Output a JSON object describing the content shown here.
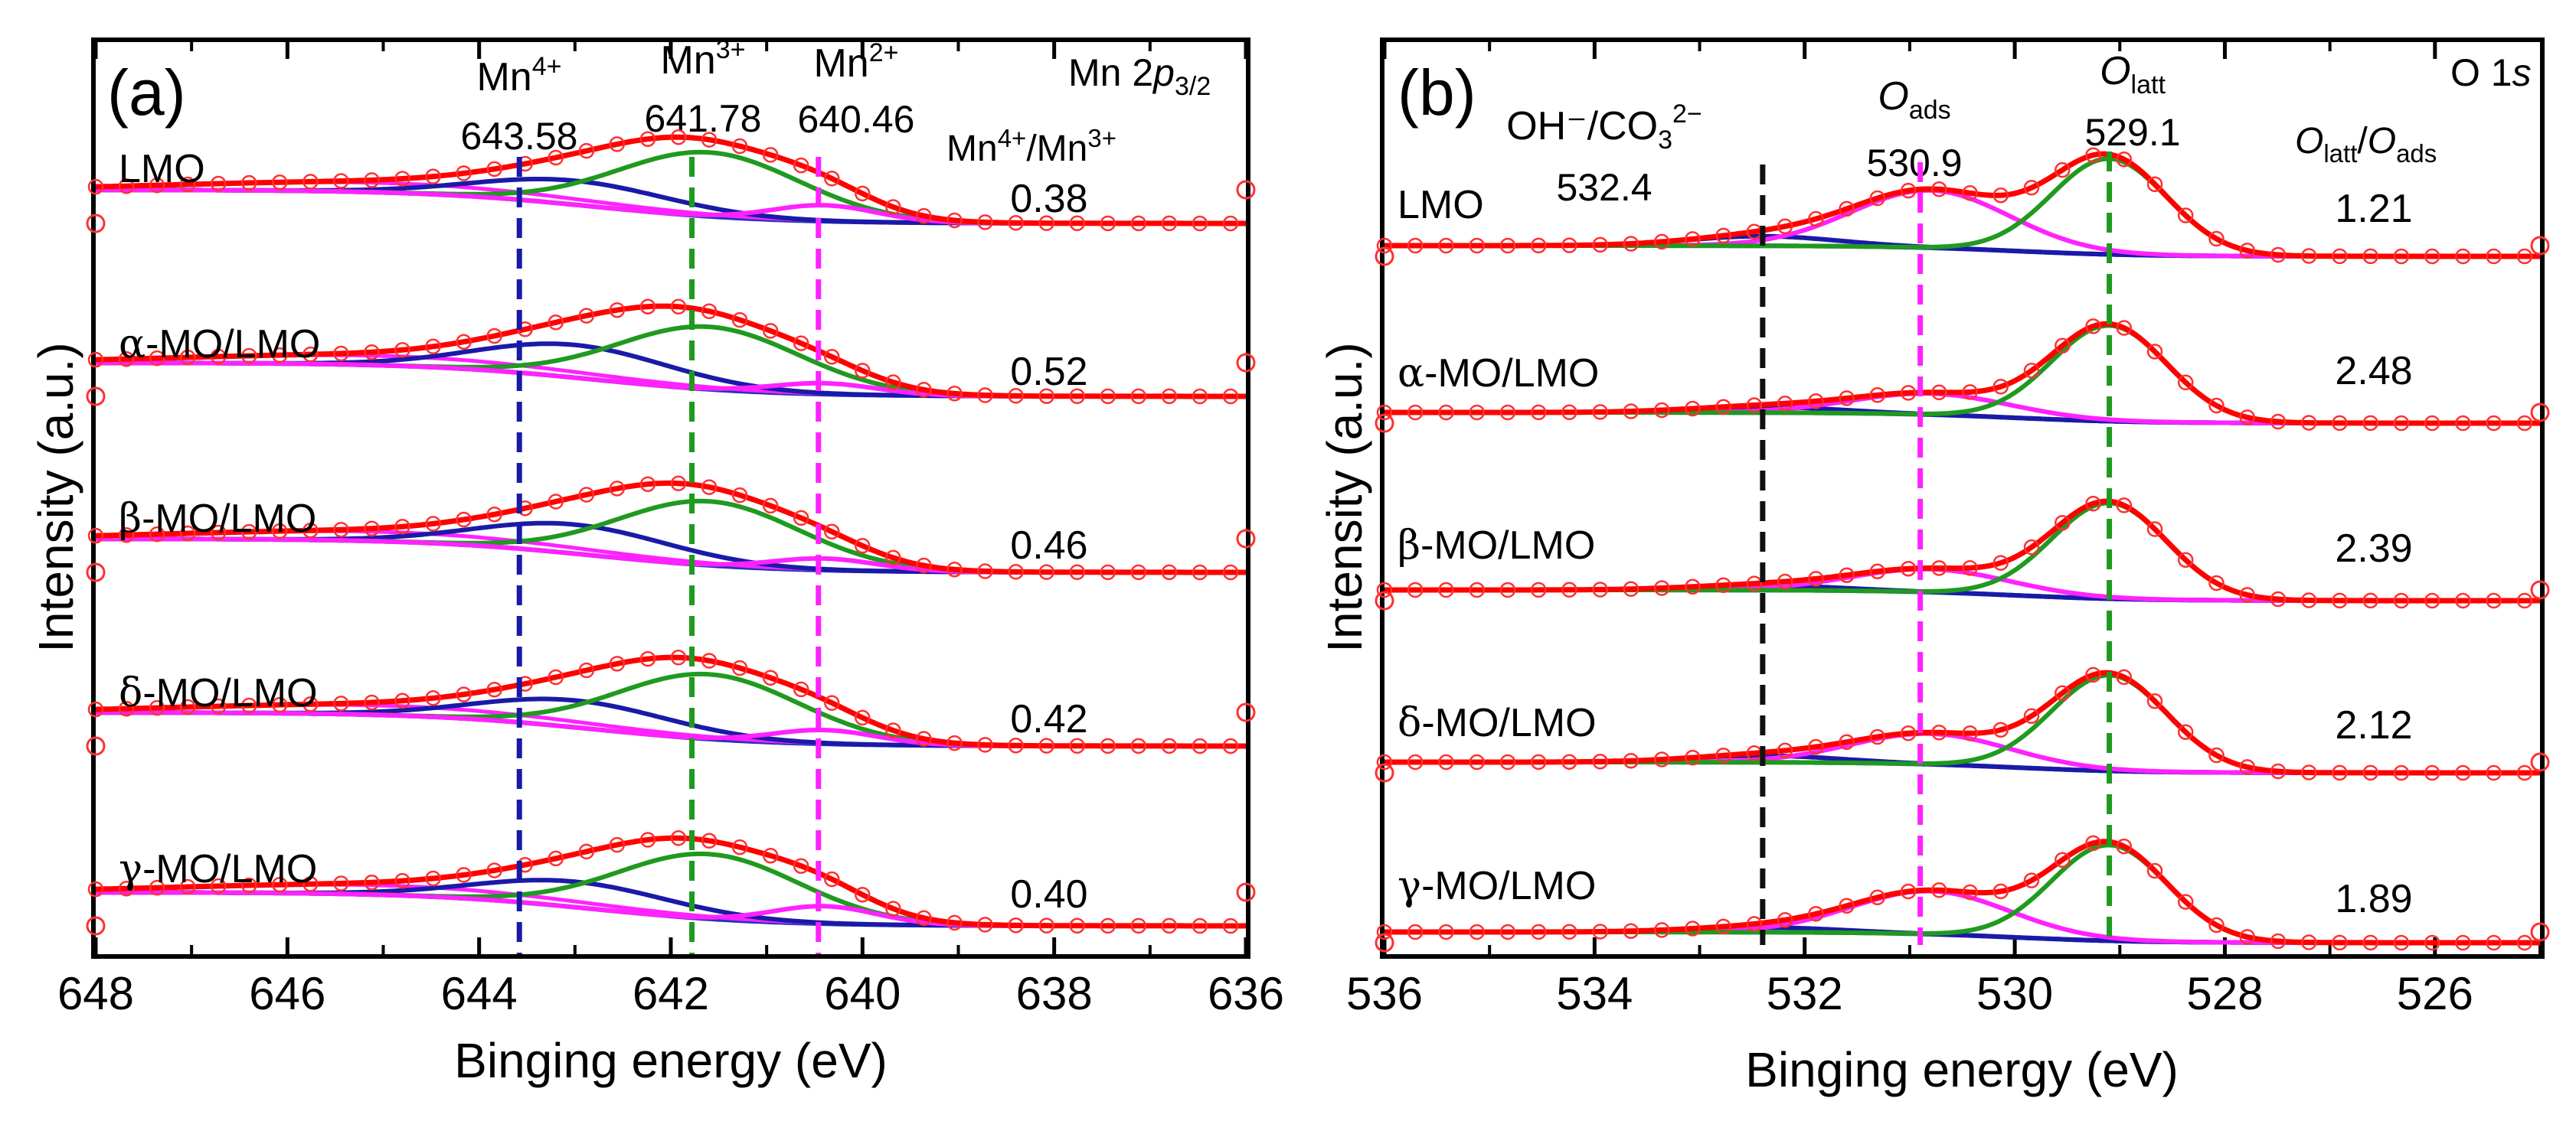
{
  "chart_data": [
    {
      "panel": "(a)",
      "type": "line",
      "kind": "XPS spectra with peak deconvolution",
      "title_main": "Mn 2",
      "title_italic": "p",
      "title_sub": "3/2",
      "xlabel": "Binging energy (eV)",
      "ylabel": "Intensity (a.u.)",
      "xlim": [
        648,
        636
      ],
      "xticks": [
        "648",
        "646",
        "644",
        "642",
        "640",
        "638",
        "636"
      ],
      "ratio_header": {
        "a": "Mn",
        "a_sup": "4+",
        "sep": "/",
        "b": "Mn",
        "b_sup": "3+"
      },
      "peaks": [
        {
          "name": "Mn",
          "sup": "4+",
          "position": 643.58,
          "label": "643.58",
          "color": "#1a1aa8"
        },
        {
          "name": "Mn",
          "sup": "3+",
          "position": 641.78,
          "label": "641.78",
          "color": "#1f9a1f"
        },
        {
          "name": "Mn",
          "sup": "2+",
          "position": 640.46,
          "label": "640.46",
          "color": "#ff22ff"
        }
      ],
      "samples": [
        {
          "greek": "",
          "rest": "LMO",
          "ratio": "0.38",
          "components": {
            "mn4": 0.33,
            "mn3": 0.88,
            "mn2": 0.22
          }
        },
        {
          "greek": "α",
          "rest": "-MO/LMO",
          "ratio": "0.52",
          "components": {
            "mn4": 0.45,
            "mn3": 0.86,
            "mn2": 0.15
          }
        },
        {
          "greek": "β",
          "rest": "-MO/LMO",
          "ratio": "0.46",
          "components": {
            "mn4": 0.4,
            "mn3": 0.88,
            "mn2": 0.16
          }
        },
        {
          "greek": "δ",
          "rest": "-MO/LMO",
          "ratio": "0.42",
          "components": {
            "mn4": 0.37,
            "mn3": 0.89,
            "mn2": 0.19
          }
        },
        {
          "greek": "γ",
          "rest": "-MO/LMO",
          "ratio": "0.40",
          "components": {
            "mn4": 0.35,
            "mn3": 0.89,
            "mn2": 0.24
          }
        }
      ],
      "colors": {
        "raw": "#ff3030",
        "fit": "#ff0000",
        "background": "#2233bb",
        "mn4": "#1a1aa8",
        "mn3": "#1f9a1f",
        "mn2": "#ff22ff",
        "tail": "#ff22ff"
      }
    },
    {
      "panel": "(b)",
      "type": "line",
      "kind": "XPS spectra with peak deconvolution",
      "title_main": "O 1",
      "title_italic": "s",
      "xlabel": "Binging energy (eV)",
      "ylabel": "Intensity (a.u.)",
      "xlim": [
        536,
        525
      ],
      "xticks": [
        "536",
        "534",
        "532",
        "530",
        "528",
        "526"
      ],
      "ratio_header": {
        "a": "O",
        "a_sub": "latt",
        "sep": "/",
        "b": "O",
        "b_sub": "ads"
      },
      "peaks": [
        {
          "name": "OH⁻/CO",
          "sub": "3",
          "sup": "2−",
          "position": 532.4,
          "label": "532.4",
          "color": "#111111"
        },
        {
          "name": "O",
          "sub": "ads",
          "position": 530.9,
          "label": "530.9",
          "color": "#ff22ff"
        },
        {
          "name": "O",
          "sub": "latt",
          "position": 529.1,
          "label": "529.1",
          "color": "#1f9a1f"
        }
      ],
      "samples": [
        {
          "greek": "",
          "rest": "LMO",
          "ratio": "1.21",
          "components": {
            "oh": 0.1,
            "ads": 0.6,
            "latt": 1.0
          }
        },
        {
          "greek": "α",
          "rest": "-MO/LMO",
          "ratio": "2.48",
          "components": {
            "oh": 0.06,
            "ads": 0.22,
            "latt": 1.0
          }
        },
        {
          "greek": "β",
          "rest": "-MO/LMO",
          "ratio": "2.39",
          "components": {
            "oh": 0.05,
            "ads": 0.24,
            "latt": 1.0
          }
        },
        {
          "greek": "δ",
          "rest": "-MO/LMO",
          "ratio": "2.12",
          "components": {
            "oh": 0.07,
            "ads": 0.32,
            "latt": 1.0
          }
        },
        {
          "greek": "γ",
          "rest": "-MO/LMO",
          "ratio": "1.89",
          "components": {
            "oh": 0.05,
            "ads": 0.45,
            "latt": 1.0
          }
        }
      ],
      "colors": {
        "raw": "#ff3030",
        "fit": "#ff0000",
        "background": "#2233bb",
        "oh": "#1a1aa8",
        "ads": "#ff22ff",
        "latt": "#1f9a1f"
      }
    }
  ]
}
